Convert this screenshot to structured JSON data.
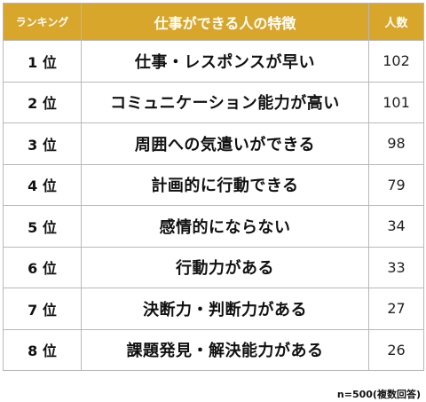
{
  "header": {
    "rank_label": "ランキング",
    "trait_label": "仕事ができる人の特徴",
    "count_label": "人数"
  },
  "rows": [
    {
      "rank": "1 位",
      "trait": "仕事・レスポンスが早い",
      "count": "102"
    },
    {
      "rank": "2 位",
      "trait": "コミュニケーション能力が高い",
      "count": "101"
    },
    {
      "rank": "3 位",
      "trait": "周囲への気遣いができる",
      "count": "98"
    },
    {
      "rank": "4 位",
      "trait": "計画的に行動できる",
      "count": "79"
    },
    {
      "rank": "5 位",
      "trait": "感情的にならない",
      "count": "34"
    },
    {
      "rank": "6 位",
      "trait": "行動力がある",
      "count": "33"
    },
    {
      "rank": "7 位",
      "trait": "決断力・判断力がある",
      "count": "27"
    },
    {
      "rank": "8 位",
      "trait": "課題発見・解決能力がある",
      "count": "26"
    }
  ],
  "footnote": "n=500(複数回答)",
  "colors": {
    "header_bg": "#d8a62a",
    "header_text": "#ffffff",
    "border": "#b8b8b8"
  }
}
